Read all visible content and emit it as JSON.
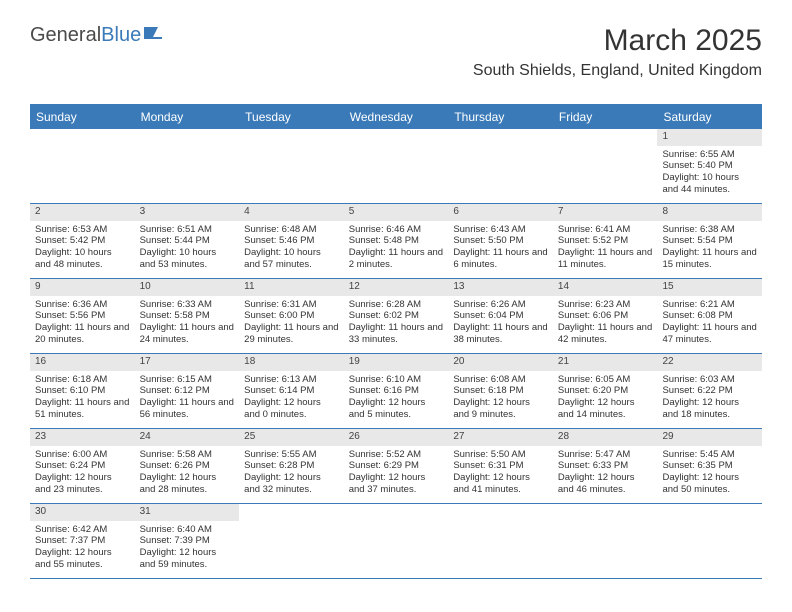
{
  "logo": {
    "text1": "General",
    "text2": "Blue"
  },
  "title": "March 2025",
  "location": "South Shields, England, United Kingdom",
  "colors": {
    "accent": "#3a7ab8",
    "header_bg": "#3a7ab8",
    "daynum_bg": "#e8e8e8",
    "text": "#333333",
    "logo_gray": "#4a4a4a"
  },
  "dayHeaders": [
    "Sunday",
    "Monday",
    "Tuesday",
    "Wednesday",
    "Thursday",
    "Friday",
    "Saturday"
  ],
  "weeks": [
    [
      {
        "n": "",
        "lines": []
      },
      {
        "n": "",
        "lines": []
      },
      {
        "n": "",
        "lines": []
      },
      {
        "n": "",
        "lines": []
      },
      {
        "n": "",
        "lines": []
      },
      {
        "n": "",
        "lines": []
      },
      {
        "n": "1",
        "lines": [
          "Sunrise: 6:55 AM",
          "Sunset: 5:40 PM",
          "Daylight: 10 hours and 44 minutes."
        ]
      }
    ],
    [
      {
        "n": "2",
        "lines": [
          "Sunrise: 6:53 AM",
          "Sunset: 5:42 PM",
          "Daylight: 10 hours and 48 minutes."
        ]
      },
      {
        "n": "3",
        "lines": [
          "Sunrise: 6:51 AM",
          "Sunset: 5:44 PM",
          "Daylight: 10 hours and 53 minutes."
        ]
      },
      {
        "n": "4",
        "lines": [
          "Sunrise: 6:48 AM",
          "Sunset: 5:46 PM",
          "Daylight: 10 hours and 57 minutes."
        ]
      },
      {
        "n": "5",
        "lines": [
          "Sunrise: 6:46 AM",
          "Sunset: 5:48 PM",
          "Daylight: 11 hours and 2 minutes."
        ]
      },
      {
        "n": "6",
        "lines": [
          "Sunrise: 6:43 AM",
          "Sunset: 5:50 PM",
          "Daylight: 11 hours and 6 minutes."
        ]
      },
      {
        "n": "7",
        "lines": [
          "Sunrise: 6:41 AM",
          "Sunset: 5:52 PM",
          "Daylight: 11 hours and 11 minutes."
        ]
      },
      {
        "n": "8",
        "lines": [
          "Sunrise: 6:38 AM",
          "Sunset: 5:54 PM",
          "Daylight: 11 hours and 15 minutes."
        ]
      }
    ],
    [
      {
        "n": "9",
        "lines": [
          "Sunrise: 6:36 AM",
          "Sunset: 5:56 PM",
          "Daylight: 11 hours and 20 minutes."
        ]
      },
      {
        "n": "10",
        "lines": [
          "Sunrise: 6:33 AM",
          "Sunset: 5:58 PM",
          "Daylight: 11 hours and 24 minutes."
        ]
      },
      {
        "n": "11",
        "lines": [
          "Sunrise: 6:31 AM",
          "Sunset: 6:00 PM",
          "Daylight: 11 hours and 29 minutes."
        ]
      },
      {
        "n": "12",
        "lines": [
          "Sunrise: 6:28 AM",
          "Sunset: 6:02 PM",
          "Daylight: 11 hours and 33 minutes."
        ]
      },
      {
        "n": "13",
        "lines": [
          "Sunrise: 6:26 AM",
          "Sunset: 6:04 PM",
          "Daylight: 11 hours and 38 minutes."
        ]
      },
      {
        "n": "14",
        "lines": [
          "Sunrise: 6:23 AM",
          "Sunset: 6:06 PM",
          "Daylight: 11 hours and 42 minutes."
        ]
      },
      {
        "n": "15",
        "lines": [
          "Sunrise: 6:21 AM",
          "Sunset: 6:08 PM",
          "Daylight: 11 hours and 47 minutes."
        ]
      }
    ],
    [
      {
        "n": "16",
        "lines": [
          "Sunrise: 6:18 AM",
          "Sunset: 6:10 PM",
          "Daylight: 11 hours and 51 minutes."
        ]
      },
      {
        "n": "17",
        "lines": [
          "Sunrise: 6:15 AM",
          "Sunset: 6:12 PM",
          "Daylight: 11 hours and 56 minutes."
        ]
      },
      {
        "n": "18",
        "lines": [
          "Sunrise: 6:13 AM",
          "Sunset: 6:14 PM",
          "Daylight: 12 hours and 0 minutes."
        ]
      },
      {
        "n": "19",
        "lines": [
          "Sunrise: 6:10 AM",
          "Sunset: 6:16 PM",
          "Daylight: 12 hours and 5 minutes."
        ]
      },
      {
        "n": "20",
        "lines": [
          "Sunrise: 6:08 AM",
          "Sunset: 6:18 PM",
          "Daylight: 12 hours and 9 minutes."
        ]
      },
      {
        "n": "21",
        "lines": [
          "Sunrise: 6:05 AM",
          "Sunset: 6:20 PM",
          "Daylight: 12 hours and 14 minutes."
        ]
      },
      {
        "n": "22",
        "lines": [
          "Sunrise: 6:03 AM",
          "Sunset: 6:22 PM",
          "Daylight: 12 hours and 18 minutes."
        ]
      }
    ],
    [
      {
        "n": "23",
        "lines": [
          "Sunrise: 6:00 AM",
          "Sunset: 6:24 PM",
          "Daylight: 12 hours and 23 minutes."
        ]
      },
      {
        "n": "24",
        "lines": [
          "Sunrise: 5:58 AM",
          "Sunset: 6:26 PM",
          "Daylight: 12 hours and 28 minutes."
        ]
      },
      {
        "n": "25",
        "lines": [
          "Sunrise: 5:55 AM",
          "Sunset: 6:28 PM",
          "Daylight: 12 hours and 32 minutes."
        ]
      },
      {
        "n": "26",
        "lines": [
          "Sunrise: 5:52 AM",
          "Sunset: 6:29 PM",
          "Daylight: 12 hours and 37 minutes."
        ]
      },
      {
        "n": "27",
        "lines": [
          "Sunrise: 5:50 AM",
          "Sunset: 6:31 PM",
          "Daylight: 12 hours and 41 minutes."
        ]
      },
      {
        "n": "28",
        "lines": [
          "Sunrise: 5:47 AM",
          "Sunset: 6:33 PM",
          "Daylight: 12 hours and 46 minutes."
        ]
      },
      {
        "n": "29",
        "lines": [
          "Sunrise: 5:45 AM",
          "Sunset: 6:35 PM",
          "Daylight: 12 hours and 50 minutes."
        ]
      }
    ],
    [
      {
        "n": "30",
        "lines": [
          "Sunrise: 6:42 AM",
          "Sunset: 7:37 PM",
          "Daylight: 12 hours and 55 minutes."
        ]
      },
      {
        "n": "31",
        "lines": [
          "Sunrise: 6:40 AM",
          "Sunset: 7:39 PM",
          "Daylight: 12 hours and 59 minutes."
        ]
      },
      {
        "n": "",
        "lines": []
      },
      {
        "n": "",
        "lines": []
      },
      {
        "n": "",
        "lines": []
      },
      {
        "n": "",
        "lines": []
      },
      {
        "n": "",
        "lines": []
      }
    ]
  ]
}
